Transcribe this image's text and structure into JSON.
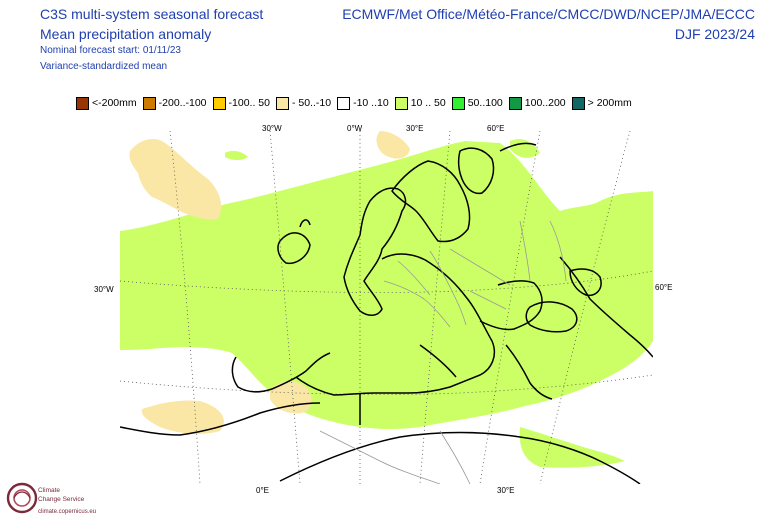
{
  "header": {
    "title_line1": "C3S multi-system seasonal forecast",
    "title_line2": "Mean precipitation anomaly",
    "start": "Nominal forecast start: 01/11/23",
    "method": "Variance-standardized mean",
    "systems": "ECMWF/Met Office/Météo-France/CMCC/DWD/NCEP/JMA/ECCC",
    "season": "DJF 2023/24"
  },
  "legend": [
    {
      "label": "<-200mm",
      "color": "#993404"
    },
    {
      "label": "-200..-100",
      "color": "#cc7a00"
    },
    {
      "label": "-100.. 50",
      "color": "#ffcc00"
    },
    {
      "label": "- 50..-10",
      "color": "#fbe7a5"
    },
    {
      "label": "-10 ..10",
      "color": "#ffffff"
    },
    {
      "label": "10 .. 50",
      "color": "#ccff66"
    },
    {
      "label": "50..100",
      "color": "#33ee33"
    },
    {
      "label": "100..200",
      "color": "#119944"
    },
    {
      "label": "> 200mm",
      "color": "#116666"
    }
  ],
  "axes": {
    "top": [
      "30°W",
      "0°W",
      "30°E",
      "60°E"
    ],
    "left": "30°W",
    "right": "60°E",
    "bottom": [
      "0°E",
      "30°E"
    ]
  },
  "logo": {
    "name_line1": "Climate",
    "name_line2": "Change Service",
    "url": "climate.copernicus.eu"
  }
}
